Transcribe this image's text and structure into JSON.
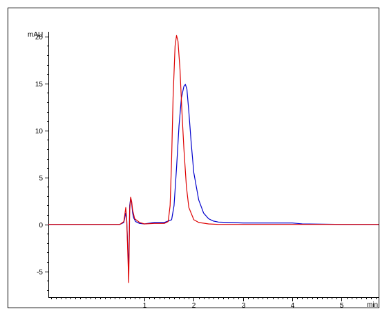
{
  "chart_data": {
    "type": "line",
    "xlabel": "min",
    "ylabel": "mAU",
    "xlim": [
      -0.95,
      5.75
    ],
    "ylim": [
      -7.75,
      20.5
    ],
    "x_ticks": [
      1,
      2,
      3,
      4,
      5
    ],
    "x_minor_step": 0.1,
    "y_ticks": [
      -5,
      0,
      5,
      10,
      15,
      20
    ],
    "y_minor_step": 1,
    "grid": false,
    "legend": "none",
    "series": [
      {
        "color": "#0000cc",
        "x": [
          -0.95,
          0.5,
          0.58,
          0.62,
          0.64,
          0.66,
          0.68,
          0.7,
          0.72,
          0.74,
          0.76,
          0.78,
          0.82,
          0.9,
          1.0,
          1.2,
          1.4,
          1.55,
          1.6,
          1.65,
          1.7,
          1.75,
          1.8,
          1.83,
          1.86,
          1.9,
          1.95,
          2.0,
          2.1,
          2.2,
          2.3,
          2.4,
          2.5,
          2.7,
          3.0,
          3.5,
          4.0,
          4.1,
          4.2,
          5.0,
          5.75
        ],
        "y": [
          0,
          0,
          0.2,
          1.2,
          0.5,
          -2.5,
          -4.8,
          2.0,
          2.8,
          2.2,
          1.2,
          0.7,
          0.3,
          0.1,
          0.05,
          0.2,
          0.2,
          0.5,
          2.0,
          6.0,
          10.5,
          13.5,
          14.7,
          14.9,
          14.4,
          12.0,
          8.5,
          5.5,
          2.6,
          1.2,
          0.6,
          0.35,
          0.25,
          0.2,
          0.15,
          0.15,
          0.15,
          0.1,
          0.05,
          0.0,
          0.0
        ]
      },
      {
        "color": "#dd0000",
        "x": [
          -0.95,
          0.5,
          0.58,
          0.6,
          0.62,
          0.64,
          0.66,
          0.68,
          0.7,
          0.72,
          0.74,
          0.76,
          0.8,
          0.9,
          1.0,
          1.2,
          1.4,
          1.48,
          1.52,
          1.55,
          1.58,
          1.62,
          1.65,
          1.68,
          1.72,
          1.76,
          1.8,
          1.85,
          1.9,
          2.0,
          2.1,
          2.3,
          2.5,
          3.0,
          4.0,
          4.2,
          5.0,
          5.75
        ],
        "y": [
          0,
          0,
          0.3,
          1.0,
          1.8,
          0.5,
          -3.0,
          -6.2,
          1.5,
          2.9,
          2.4,
          1.5,
          0.6,
          0.2,
          0.05,
          0.1,
          0.1,
          0.3,
          2.0,
          7.0,
          13.5,
          19.0,
          20.1,
          19.5,
          16.5,
          12.0,
          8.0,
          4.0,
          1.8,
          0.5,
          0.2,
          0.05,
          0.0,
          0.0,
          0.0,
          0.0,
          0.0,
          0.0
        ]
      }
    ]
  }
}
